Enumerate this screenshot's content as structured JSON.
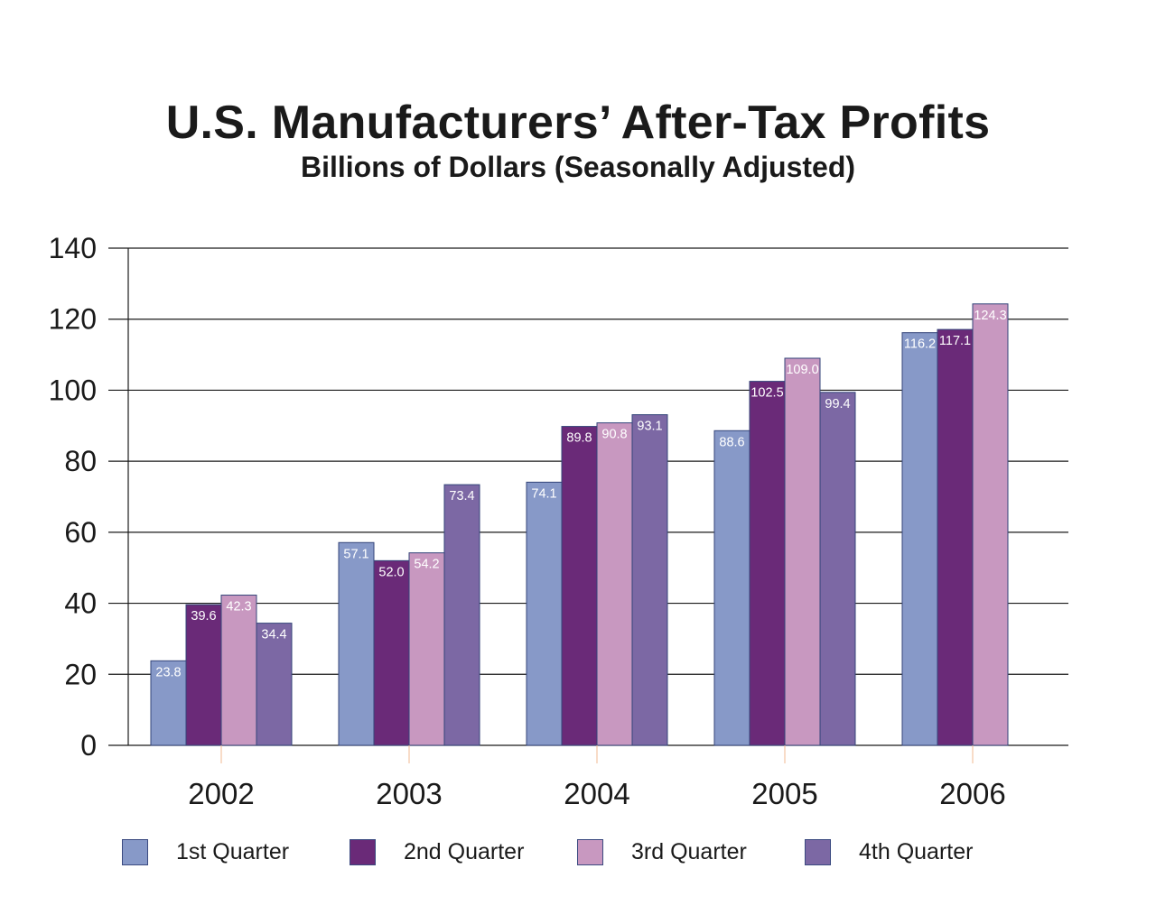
{
  "chart_data": {
    "type": "bar",
    "title": "U.S. Manufacturers’ After-Tax Profits",
    "subtitle": "Billions of Dollars (Seasonally Adjusted)",
    "xlabel": "",
    "ylabel": "",
    "ylim": [
      0,
      140
    ],
    "yticks": [
      0,
      20,
      40,
      60,
      80,
      100,
      120,
      140
    ],
    "grid": true,
    "legend_position": "bottom",
    "categories": [
      "2002",
      "2003",
      "2004",
      "2005",
      "2006"
    ],
    "series": [
      {
        "name": "1st Quarter",
        "color": "#8799c8",
        "values": [
          23.8,
          57.1,
          74.1,
          88.6,
          116.2
        ]
      },
      {
        "name": "2nd Quarter",
        "color": "#6a2a78",
        "values": [
          39.6,
          52.0,
          89.8,
          102.5,
          117.1
        ]
      },
      {
        "name": "3rd Quarter",
        "color": "#c898c0",
        "values": [
          42.3,
          54.2,
          90.8,
          109.0,
          124.3
        ]
      },
      {
        "name": "4th Quarter",
        "color": "#7c68a4",
        "values": [
          34.4,
          73.4,
          93.1,
          99.4,
          null
        ]
      }
    ],
    "data_labels": [
      [
        "23.8",
        "57.1",
        "74.1",
        "88.6",
        "116.2"
      ],
      [
        "39.6",
        "52.0",
        "89.8",
        "102.5",
        "117.1"
      ],
      [
        "42.3",
        "54.2",
        "90.8",
        "109.0",
        "124.3"
      ],
      [
        "34.4",
        "73.4",
        "93.1",
        "99.4",
        null
      ]
    ]
  }
}
